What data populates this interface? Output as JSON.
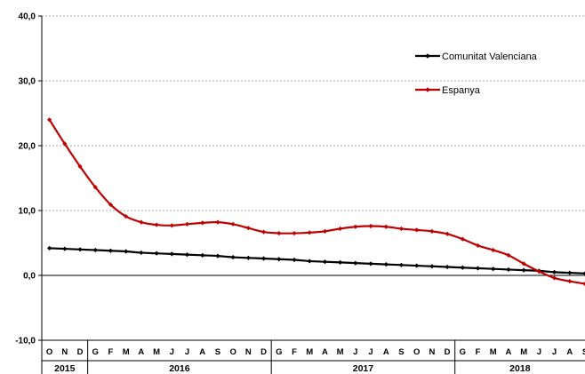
{
  "chart_data": {
    "type": "line",
    "title": "",
    "xlabel": "",
    "ylabel": "",
    "ylim": [
      -10,
      40
    ],
    "yticks": [
      "-10,0",
      "0,0",
      "10,0",
      "20,0",
      "30,0",
      "40,0"
    ],
    "grid": "horizontal dotted",
    "legend_position": "top-right",
    "x": [
      "O",
      "N",
      "D",
      "G",
      "F",
      "M",
      "A",
      "M",
      "J",
      "J",
      "A",
      "S",
      "O",
      "N",
      "D",
      "G",
      "F",
      "M",
      "A",
      "M",
      "J",
      "J",
      "A",
      "S",
      "O",
      "N",
      "D",
      "G",
      "F",
      "M",
      "A",
      "M",
      "J",
      "J",
      "A",
      "S"
    ],
    "year_groups": [
      {
        "label": "2015",
        "count": 3
      },
      {
        "label": "2016",
        "count": 12
      },
      {
        "label": "2017",
        "count": 12
      },
      {
        "label": "2018",
        "count": 9
      }
    ],
    "series": [
      {
        "name": "Comunitat Valenciana",
        "color": "#000000",
        "values": [
          4.2,
          4.1,
          4.0,
          3.9,
          3.8,
          3.7,
          3.5,
          3.4,
          3.3,
          3.2,
          3.1,
          3.0,
          2.8,
          2.7,
          2.6,
          2.5,
          2.4,
          2.2,
          2.1,
          2.0,
          1.9,
          1.8,
          1.7,
          1.6,
          1.5,
          1.4,
          1.3,
          1.2,
          1.1,
          1.0,
          0.9,
          0.8,
          0.7,
          0.5,
          0.4,
          0.3
        ]
      },
      {
        "name": "Espanya",
        "color": "#c00000",
        "values": [
          24.0,
          20.3,
          16.8,
          13.6,
          10.9,
          9.1,
          8.2,
          7.8,
          7.7,
          7.9,
          8.1,
          8.2,
          7.9,
          7.3,
          6.7,
          6.5,
          6.5,
          6.6,
          6.8,
          7.2,
          7.5,
          7.6,
          7.5,
          7.2,
          7.0,
          6.8,
          6.4,
          5.6,
          4.6,
          3.9,
          3.1,
          1.8,
          0.6,
          -0.4,
          -0.9,
          -1.3
        ]
      }
    ]
  }
}
